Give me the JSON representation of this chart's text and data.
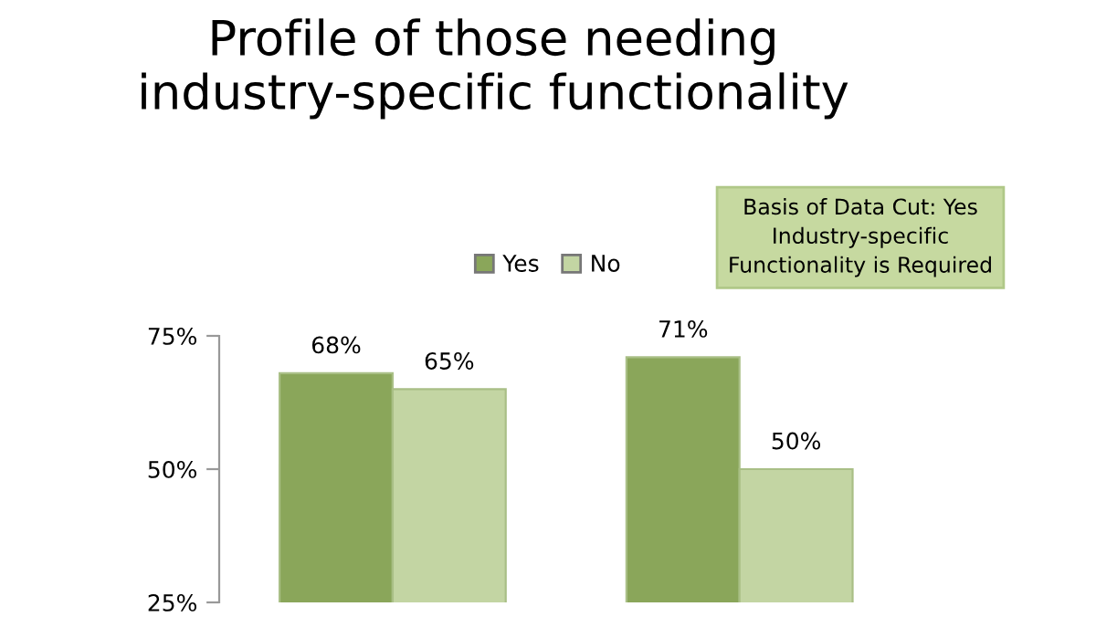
{
  "chart_data": {
    "type": "bar",
    "title": "Profile of those needing\nindustry-specific functionality",
    "annotations": [
      "Basis of Data Cut: Yes\nIndustry-specific\nFunctionality is Required"
    ],
    "categories": [
      null,
      null
    ],
    "series": [
      {
        "name": "Yes",
        "color": "#8aa65a",
        "values": [
          68,
          71
        ]
      },
      {
        "name": "No",
        "color": "#c3d5a3",
        "values": [
          65,
          50
        ]
      }
    ],
    "ylim": [
      25,
      75
    ],
    "yticks": [
      {
        "value": 25,
        "label": "25%"
      },
      {
        "value": 50,
        "label": "50%"
      },
      {
        "value": 75,
        "label": "75%"
      }
    ],
    "value_labels": [
      [
        "68%",
        "71%"
      ],
      [
        "65%",
        "50%"
      ]
    ],
    "grid": false,
    "legend": "top"
  }
}
